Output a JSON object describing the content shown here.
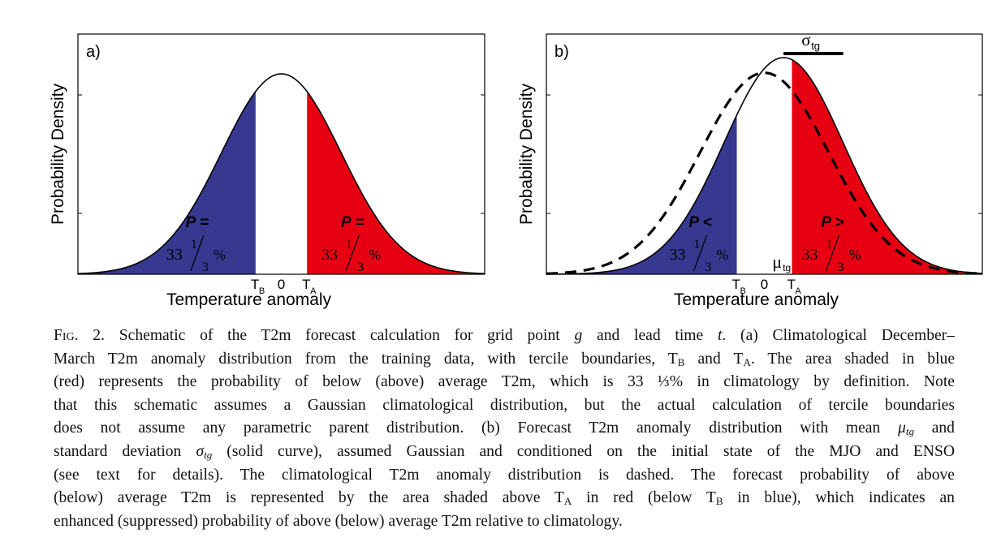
{
  "chart_data": [
    {
      "type": "area",
      "panel_label": "a)",
      "xlabel": "Temperature anomaly",
      "ylabel": "Probability Density",
      "tick_labels": {
        "lower": "T",
        "lower_sub": "B",
        "zero": "0",
        "upper": "T",
        "upper_sub": "A"
      },
      "curves": [
        {
          "style": "solid",
          "mean": 0,
          "sd": 1
        }
      ],
      "shaded_regions": [
        {
          "side": "below",
          "color": "#36398f",
          "label_p": "P =",
          "label_pct": "33",
          "frac_num": "1",
          "frac_den": "3",
          "pct_sign": "%"
        },
        {
          "side": "above",
          "color": "#e60012",
          "label_p": "P =",
          "label_pct": "33",
          "frac_num": "1",
          "frac_den": "3",
          "pct_sign": "%"
        }
      ],
      "xlim": [
        -3.4,
        3.4
      ],
      "tercile_boundaries": [
        -0.43,
        0.43
      ]
    },
    {
      "type": "area",
      "panel_label": "b)",
      "xlabel": "Temperature anomaly",
      "ylabel": "Probability Density",
      "tick_labels": {
        "lower": "T",
        "lower_sub": "B",
        "zero": "0",
        "upper": "T",
        "upper_sub": "A"
      },
      "curves": [
        {
          "style": "solid",
          "mean": 0.3,
          "sd": 0.93
        },
        {
          "style": "dashed",
          "mean": 0,
          "sd": 1
        }
      ],
      "shaded_regions": [
        {
          "side": "below",
          "color": "#36398f",
          "label_p": "P <",
          "label_pct": "33",
          "frac_num": "1",
          "frac_den": "3",
          "pct_sign": "%"
        },
        {
          "side": "above",
          "color": "#e60012",
          "label_p": "P >",
          "label_pct": "33",
          "frac_num": "1",
          "frac_den": "3",
          "pct_sign": "%"
        }
      ],
      "mean_label": {
        "text": "μ",
        "sub": "tg"
      },
      "sigma_label": {
        "text": "σ",
        "sub": "tg"
      },
      "xlim": [
        -3.4,
        3.4
      ],
      "tercile_boundaries": [
        -0.43,
        0.43
      ]
    }
  ],
  "caption": {
    "fig": "Fig. 2.",
    "l1a": " Schematic of the T2m forecast calculation for grid point ",
    "g": "g",
    "l1b": " and lead time ",
    "t": "t",
    "l1c": ". (a) Climatological December–",
    "l2a": "March T2m anomaly distribution from the training data, with tercile boundaries, T",
    "l2sub1": "B",
    "l2b": " and T",
    "l2sub2": "A",
    "l2c": ". The area shaded in blue",
    "l3": "(red) represents the probability of below (above) average T2m, which is 33 ⅓% in climatology by definition. Note",
    "l4": "that this schematic assumes a Gaussian climatological distribution, but the actual calculation of tercile boundaries",
    "l5a": "does not assume any parametric parent distribution. (b) Forecast T2m anomaly distribution with mean ",
    "mu": "μ",
    "mu_sub": "tg",
    "l5b": " and",
    "l6a": "standard deviation ",
    "sigma": "σ",
    "sigma_sub": "tg",
    "l6b": " (solid curve), assumed Gaussian and conditioned on the initial state of the MJO and ENSO",
    "l7": "(see text for details). The climatological T2m anomaly distribution is dashed. The forecast probability of above",
    "l8a": "(below) average T2m is represented by the area shaded above T",
    "l8sub1": "A",
    "l8b": " in red (below T",
    "l8sub2": "B",
    "l8c": " in blue), which indicates an",
    "l9": "enhanced (suppressed) probability of above (below) average T2m relative to climatology."
  }
}
